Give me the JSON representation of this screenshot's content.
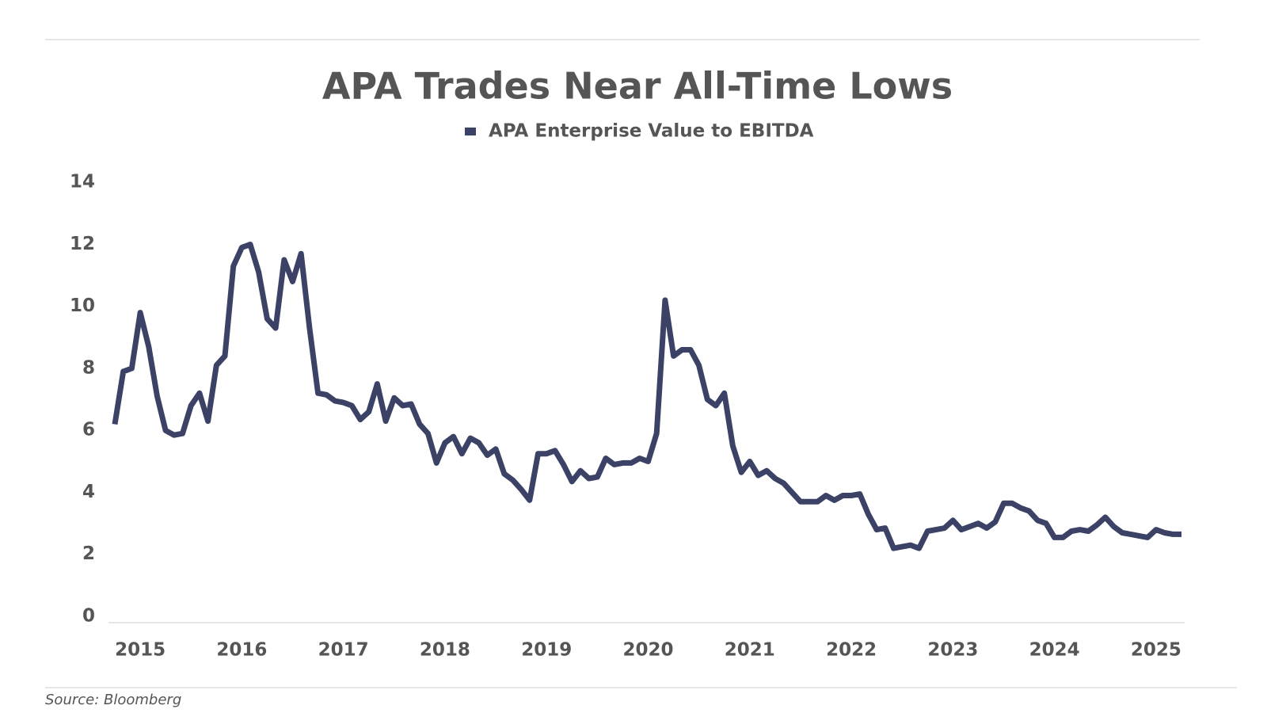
{
  "chart_data": {
    "type": "line",
    "title": "APA Trades Near All-Time Lows",
    "source": "Source: Bloomberg",
    "categories": [
      null,
      null,
      null,
      "2015",
      null,
      null,
      null,
      null,
      null,
      null,
      null,
      null,
      null,
      null,
      null,
      "2016",
      null,
      null,
      null,
      null,
      null,
      null,
      null,
      null,
      null,
      null,
      null,
      "2017",
      null,
      null,
      null,
      null,
      null,
      null,
      null,
      null,
      null,
      null,
      null,
      "2018",
      null,
      null,
      null,
      null,
      null,
      null,
      null,
      null,
      null,
      null,
      null,
      "2019",
      null,
      null,
      null,
      null,
      null,
      null,
      null,
      null,
      null,
      null,
      null,
      "2020",
      null,
      null,
      null,
      null,
      null,
      null,
      null,
      null,
      null,
      null,
      null,
      "2021",
      null,
      null,
      null,
      null,
      null,
      null,
      null,
      null,
      null,
      null,
      null,
      "2022",
      null,
      null,
      null,
      null,
      null,
      null,
      null,
      null,
      null,
      null,
      null,
      "2023",
      null,
      null,
      null,
      null,
      null,
      null,
      null,
      null,
      null,
      null,
      null,
      "2024",
      null,
      null,
      null,
      null,
      null,
      null,
      null,
      null,
      null,
      null,
      null,
      "2025",
      null,
      null,
      null
    ],
    "series": [
      {
        "name": "APA Enterprise Value to EBITDA",
        "color": "#3b4266",
        "values": [
          6.4,
          8.1,
          8.2,
          10.0,
          8.9,
          7.3,
          6.2,
          6.05,
          6.1,
          7.0,
          7.4,
          6.5,
          8.3,
          8.6,
          11.5,
          12.1,
          12.2,
          11.3,
          9.8,
          9.5,
          11.7,
          11.0,
          11.9,
          9.5,
          7.4,
          7.35,
          7.15,
          7.1,
          7.0,
          6.55,
          6.8,
          7.7,
          6.5,
          7.25,
          7.0,
          7.05,
          6.4,
          6.1,
          5.15,
          5.8,
          6.0,
          5.45,
          5.95,
          5.8,
          5.4,
          5.6,
          4.8,
          4.6,
          4.3,
          3.95,
          5.45,
          5.45,
          5.55,
          5.1,
          4.55,
          4.9,
          4.65,
          4.7,
          5.3,
          5.1,
          5.15,
          5.15,
          5.3,
          5.2,
          6.1,
          10.4,
          8.6,
          8.8,
          8.8,
          8.3,
          7.2,
          7.0,
          7.4,
          5.7,
          4.85,
          5.2,
          4.75,
          4.9,
          4.65,
          4.5,
          4.2,
          3.9,
          3.9,
          3.9,
          4.1,
          3.95,
          4.1,
          4.1,
          4.15,
          3.5,
          3.0,
          3.05,
          2.4,
          2.45,
          2.5,
          2.4,
          2.95,
          3.0,
          3.05,
          3.3,
          3.0,
          3.1,
          3.2,
          3.05,
          3.25,
          3.85,
          3.85,
          3.7,
          3.6,
          3.3,
          3.2,
          2.75,
          2.75,
          2.95,
          3.0,
          2.95,
          3.15,
          3.4,
          3.1,
          2.9,
          2.85,
          2.8,
          2.75,
          3.0,
          2.9,
          2.85,
          2.85
        ]
      }
    ],
    "ylim": [
      0,
      14
    ],
    "yticks": [
      0,
      2,
      4,
      6,
      8,
      10,
      12,
      14
    ],
    "grid": false,
    "legend": "top"
  }
}
